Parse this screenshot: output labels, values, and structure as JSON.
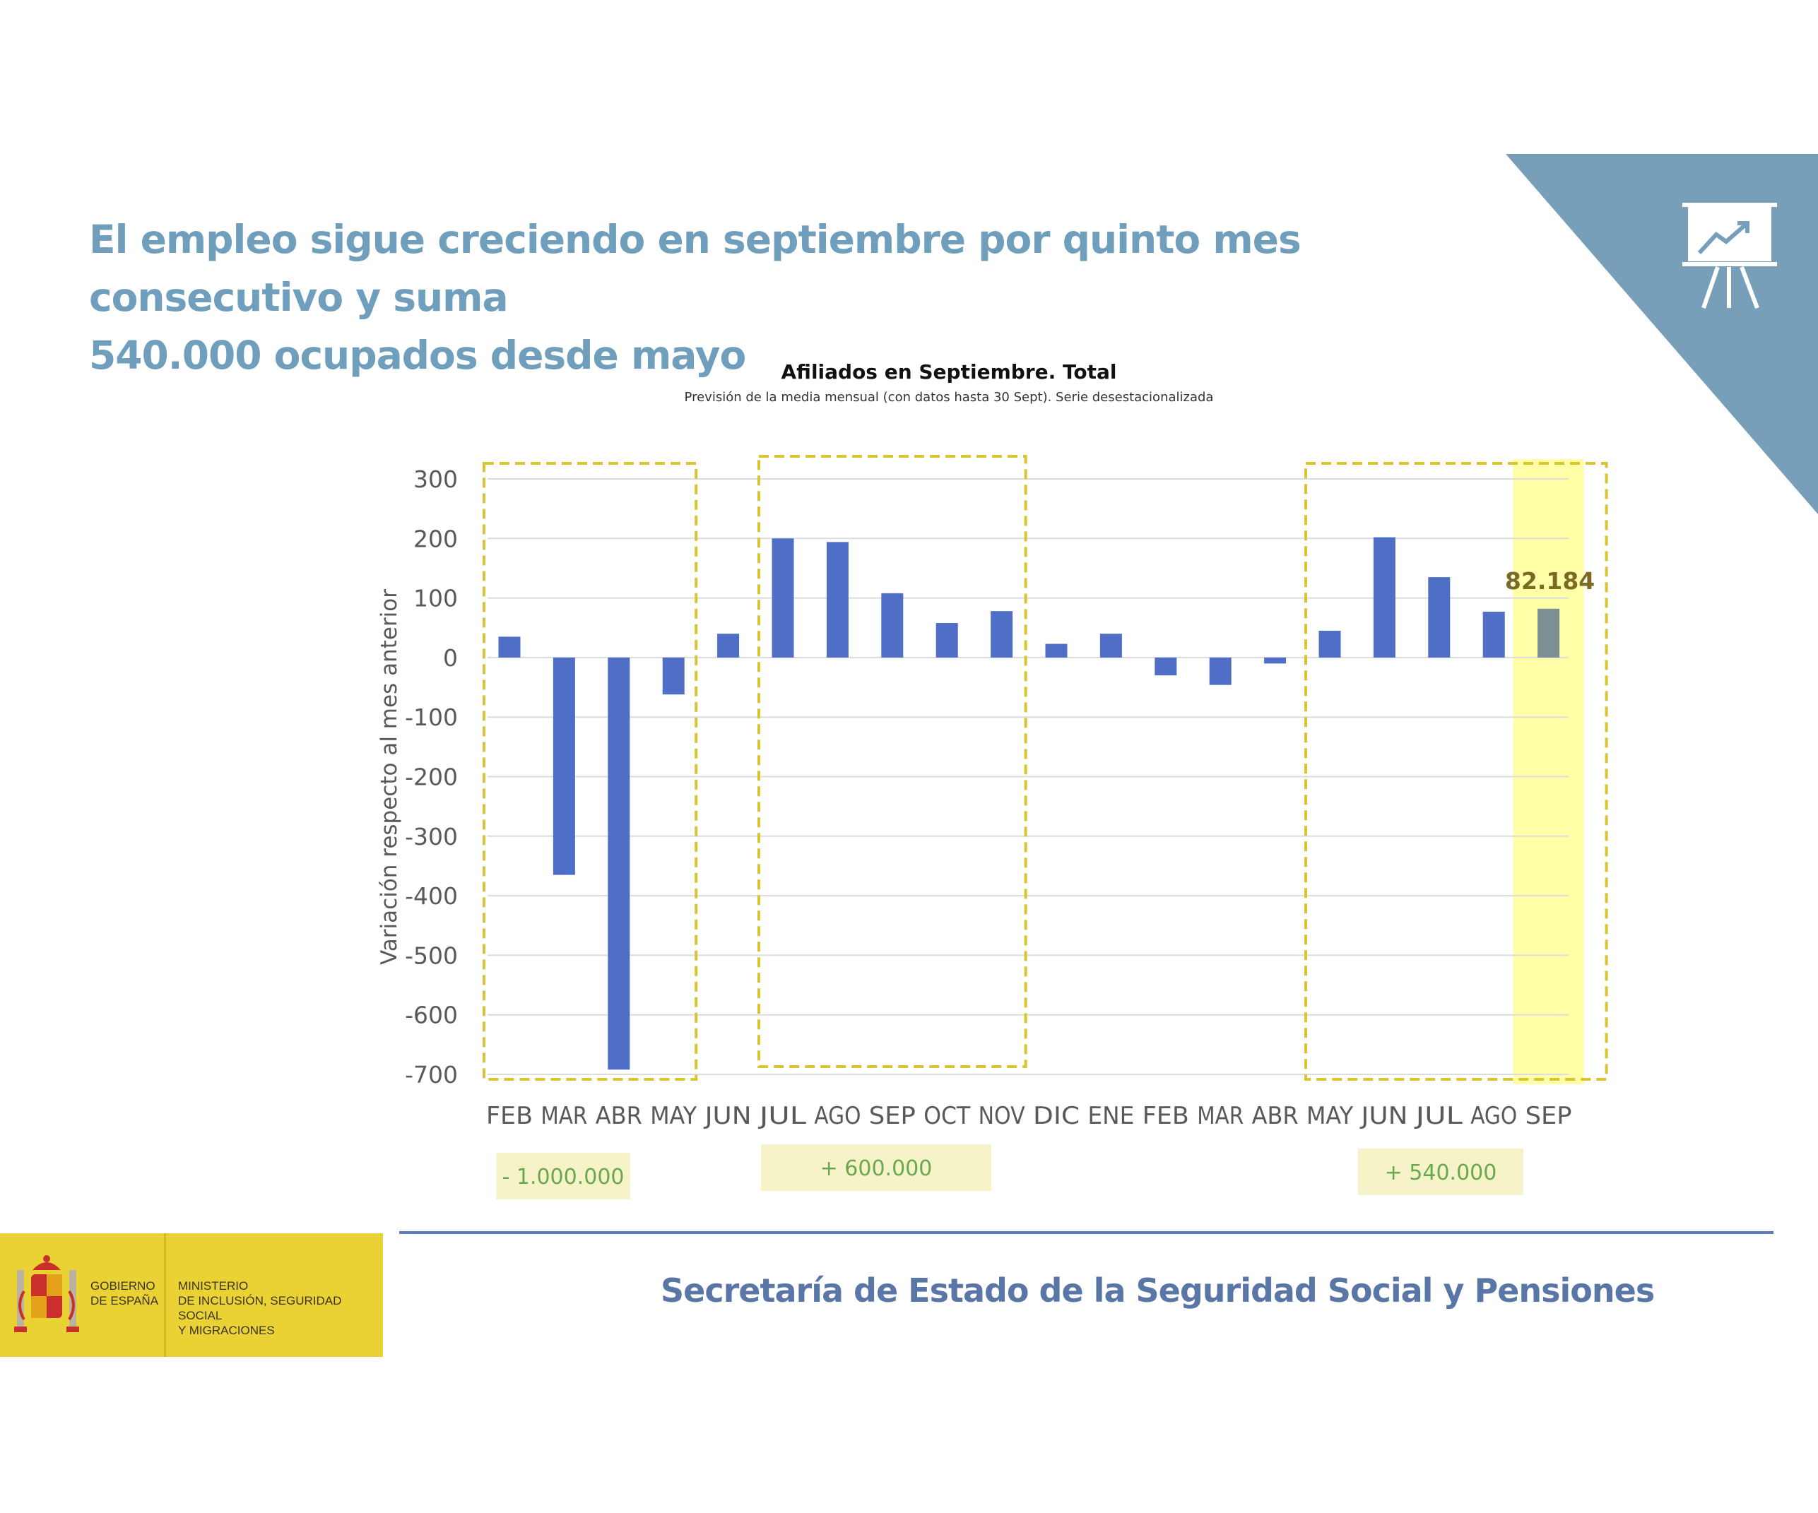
{
  "headline": {
    "line1": "El empleo sigue creciendo en septiembre por quinto mes consecutivo y suma",
    "line2": "540.000 ocupados desde mayo"
  },
  "icons": {
    "corner": "presentation-board-icon",
    "shield": "coat-of-arms-icon"
  },
  "colors": {
    "accent": "#6f9fbd",
    "bar": "#4f6fc6",
    "bar_highlight": "#7b8f94",
    "highlight_bg": "#ffffa8",
    "box_border": "#d9c431",
    "callout_bg": "#f7f3c9",
    "callout_text": "#6aa84f",
    "annotation_text": "#7a6a24"
  },
  "chart_data": {
    "type": "bar",
    "title": "Afiliados en Septiembre. Total",
    "subtitle": "Previsión de la media mensual (con datos hasta 30 Sept). Serie desestacionalizada",
    "ylabel": "Variación respecto al mes anterior",
    "xlabel": "",
    "ylim": [
      -700,
      300
    ],
    "yticks": [
      300,
      200,
      100,
      0,
      -100,
      -200,
      -300,
      -400,
      -500,
      -600,
      -700
    ],
    "grid": true,
    "categories": [
      "FEB",
      "MAR",
      "ABR",
      "MAY",
      "JUN",
      "JUL",
      "AGO",
      "SEP",
      "OCT",
      "NOV",
      "DIC",
      "ENE",
      "FEB",
      "MAR",
      "ABR",
      "MAY",
      "JUN",
      "JUL",
      "AGO",
      "SEP"
    ],
    "values": [
      35,
      -365,
      -692,
      -62,
      40,
      200,
      194,
      108,
      58,
      78,
      23,
      40,
      -30,
      -46,
      -10,
      45,
      202,
      135,
      77,
      82
    ],
    "highlight_index": 19,
    "data_label": {
      "index": 19,
      "text": "82.184"
    },
    "groups": [
      {
        "from": 0,
        "to": 3,
        "label": "- 1.000.000"
      },
      {
        "from": 5,
        "to": 9,
        "label": "+ 600.000"
      },
      {
        "from": 15,
        "to": 19,
        "label": "+ 540.000"
      }
    ]
  },
  "footer": {
    "title": "Secretaría de Estado de la Seguridad Social y Pensiones",
    "gobierno": [
      "GOBIERNO",
      "DE ESPAÑA"
    ],
    "ministerio": [
      "MINISTERIO",
      "DE INCLUSIÓN, SEGURIDAD SOCIAL",
      "Y MIGRACIONES"
    ]
  }
}
